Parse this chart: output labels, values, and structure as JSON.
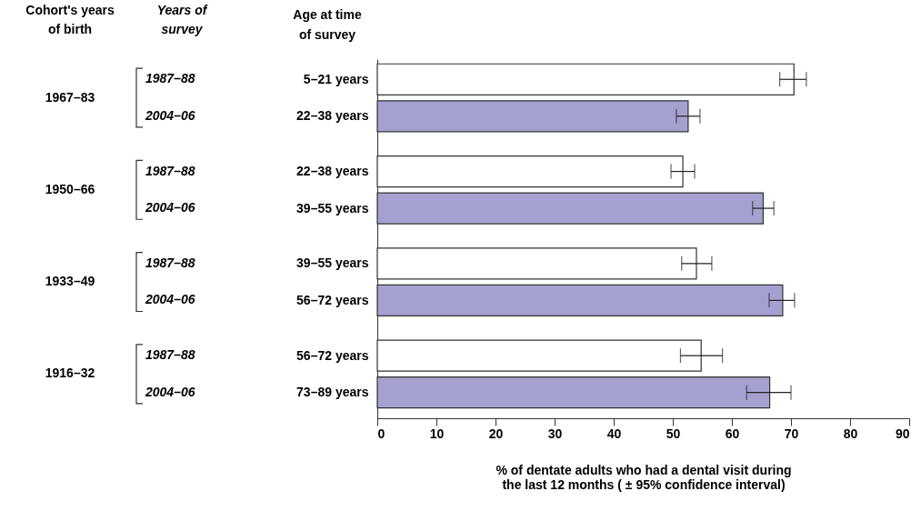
{
  "chart_data": {
    "type": "bar",
    "orientation": "horizontal",
    "categories": [
      "5–21 years",
      "22–38 years",
      "22–38 years",
      "39–55 years",
      "39–55 years",
      "56–72 years",
      "56–72 years",
      "73–89  years"
    ],
    "values": [
      70.5,
      52.6,
      51.7,
      65.3,
      54.0,
      68.6,
      54.8,
      66.4
    ],
    "colors": [
      "#ffffff",
      "#a4a0cf",
      "#ffffff",
      "#a4a0cf",
      "#ffffff",
      "#a4a0cf",
      "#ffffff",
      "#a4a0cf"
    ],
    "errors": [
      [
        68.1,
        72.6
      ],
      [
        50.6,
        54.6
      ],
      [
        49.7,
        53.7
      ],
      [
        63.5,
        67.1
      ],
      [
        51.5,
        56.6
      ],
      [
        66.3,
        70.6
      ],
      [
        51.3,
        58.4
      ],
      [
        62.5,
        70.0
      ]
    ],
    "xlim": [
      0,
      90
    ],
    "xticks": [
      0,
      10,
      20,
      30,
      40,
      50,
      60,
      70,
      80,
      90
    ],
    "xlabel": "% of dentate adults who had a dental visit during the last 12 months ( ± 95% confidence interval)",
    "ylabel": "Age at time of survey",
    "annotations": [
      "Cohort's years of birth",
      "Years of survey",
      "1967–83",
      "1987–88",
      "2004–06",
      "1950–66",
      "1987–88",
      "2004–06",
      "1933–49",
      "1987–88",
      "2004–06",
      "1916–32",
      "1987–88",
      "2004–06"
    ],
    "grid": false
  }
}
